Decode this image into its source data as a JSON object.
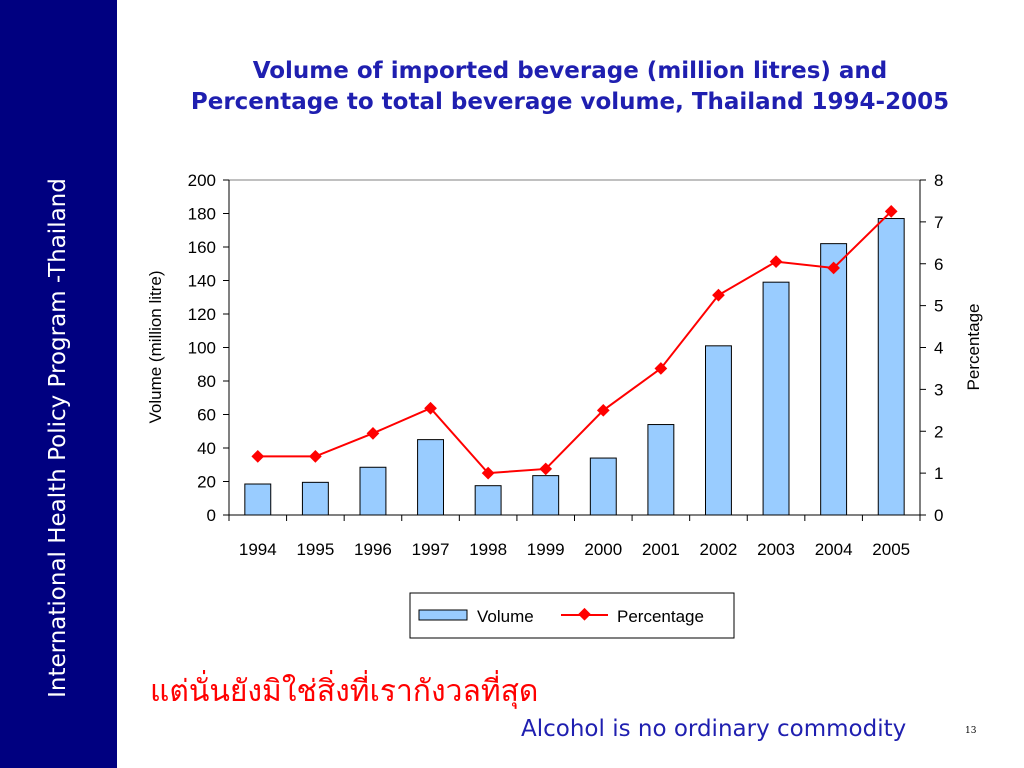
{
  "sidebar": {
    "text": "International Health Policy Program -Thailand"
  },
  "slide": {
    "thai_text": "แต่นั่นยังมิใช่สิ่งที่เรากังวลที่สุด",
    "footer": "Alcohol is no ordinary commodity",
    "page_number": "13"
  },
  "chart_data": {
    "type": "bar",
    "title": "Volume of imported beverage (million litres) and",
    "subtitle": "Percentage to total beverage volume, Thailand 1994-2005",
    "categories": [
      "1994",
      "1995",
      "1996",
      "1997",
      "1998",
      "1999",
      "2000",
      "2001",
      "2002",
      "2003",
      "2004",
      "2005"
    ],
    "series": [
      {
        "name": "Volume",
        "type": "bar",
        "axis": "left",
        "values": [
          18.5,
          19.5,
          28.5,
          45,
          17.5,
          23.5,
          34,
          54,
          101,
          139,
          162,
          177
        ],
        "color": "#99ccff"
      },
      {
        "name": "Percentage",
        "type": "line",
        "axis": "right",
        "values": [
          1.4,
          1.4,
          1.95,
          2.55,
          1.0,
          1.1,
          2.5,
          3.5,
          5.25,
          6.05,
          5.9,
          7.25
        ],
        "color": "#ff0000"
      }
    ],
    "ylabel": "Volume (million litre)",
    "y2label": "Percentage",
    "ylim": [
      0,
      200
    ],
    "yticks": [
      "0",
      "20",
      "40",
      "60",
      "80",
      "100",
      "120",
      "140",
      "160",
      "180",
      "200"
    ],
    "y2lim": [
      0,
      8
    ],
    "y2ticks": [
      "0",
      "1",
      "2",
      "3",
      "4",
      "5",
      "6",
      "7",
      "8"
    ],
    "grid": false,
    "legend": {
      "placement": "bottom",
      "entries": [
        "Volume",
        "Percentage"
      ]
    }
  }
}
